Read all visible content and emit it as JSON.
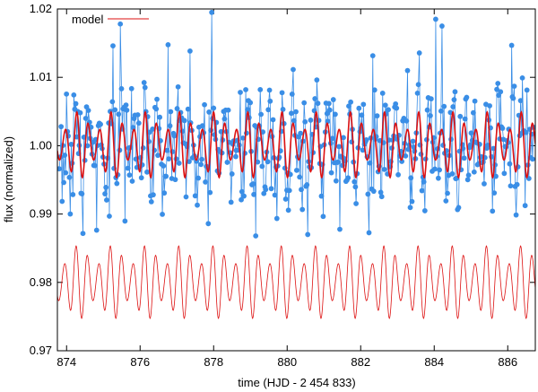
{
  "chart_data": {
    "type": "line",
    "xlabel": "time (HJD - 2 454 833)",
    "ylabel": "flux (normalized)",
    "xlim": [
      873.75,
      886.75
    ],
    "ylim": [
      0.97,
      1.02
    ],
    "xticks": [
      874,
      876,
      878,
      880,
      882,
      884,
      886
    ],
    "yticks": [
      0.97,
      0.98,
      0.99,
      1.0,
      1.01,
      1.02
    ],
    "xtick_labels": [
      "874",
      "876",
      "878",
      "880",
      "882",
      "884",
      "886"
    ],
    "ytick_labels": [
      "0.97",
      "0.98",
      "0.99",
      "1.00",
      "1.01",
      "1.02"
    ],
    "grid": false,
    "legend": {
      "position": "top-left",
      "entries": [
        "model"
      ]
    },
    "colors": {
      "data": "#3a8ee6",
      "model": "#dd1111",
      "frame": "#000000"
    },
    "series": [
      {
        "name": "model",
        "style": "line",
        "description": "synthetic oscillation, offset copy shown near 0.98",
        "period_days": 0.31,
        "mean": 1.0,
        "amplitude_range": [
          0.002,
          0.005
        ],
        "offset_copy_mean": 0.98,
        "offset_copy_amplitude_range": [
          0.0025,
          0.0055
        ]
      },
      {
        "style": "points+line",
        "x_range": [
          873.75,
          886.75
        ],
        "y_range": [
          0.9865,
          1.02
        ],
        "typical_y_range": [
          0.99,
          1.01
        ],
        "point_count": 520
      }
    ]
  }
}
